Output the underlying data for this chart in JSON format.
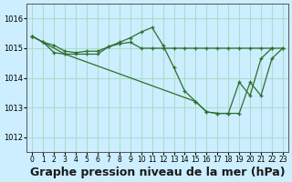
{
  "background_color": "#cceeff",
  "grid_color": "#aaddcc",
  "line_color": "#2d6e2d",
  "marker_color": "#2d6e2d",
  "xlabel": "Graphe pression niveau de la mer (hPa)",
  "xlabel_fontsize": 9,
  "ylim": [
    1011.5,
    1016.5
  ],
  "xlim": [
    -0.5,
    23.5
  ],
  "yticks": [
    1012,
    1013,
    1014,
    1015,
    1016
  ],
  "xticks": [
    0,
    1,
    2,
    3,
    4,
    5,
    6,
    7,
    8,
    9,
    10,
    11,
    12,
    13,
    14,
    15,
    16,
    17,
    18,
    19,
    20,
    21,
    22,
    23
  ],
  "series": [
    {
      "x": [
        0,
        1,
        2,
        3,
        4,
        5,
        6,
        7,
        8,
        9,
        10,
        11,
        12,
        13,
        14,
        15,
        16,
        17,
        18,
        19,
        20,
        21,
        22,
        23
      ],
      "y": [
        1015.4,
        1015.2,
        1015.1,
        1014.9,
        1014.85,
        1014.9,
        1014.9,
        1015.05,
        1015.15,
        1015.2,
        1015.0,
        1015.0,
        1015.0,
        1015.0,
        1015.0,
        1015.0,
        1015.0,
        1015.0,
        1015.0,
        1015.0,
        1015.0,
        1015.0,
        1015.0,
        1015.0
      ]
    },
    {
      "x": [
        0,
        1,
        2,
        3,
        4,
        5,
        6,
        7,
        8,
        9,
        10,
        11,
        12,
        13,
        14,
        15,
        16,
        17,
        18,
        19,
        20,
        21,
        22
      ],
      "y": [
        1015.4,
        1015.2,
        1014.85,
        1014.8,
        1014.8,
        1014.8,
        1014.8,
        1015.05,
        1015.2,
        1015.35,
        1015.55,
        1015.7,
        1015.1,
        1014.35,
        1013.55,
        1013.2,
        1012.85,
        1012.8,
        1012.8,
        1013.85,
        1013.4,
        1014.65,
        1015.0
      ]
    },
    {
      "x": [
        0,
        3,
        15,
        16,
        17,
        18,
        19,
        20,
        21,
        22,
        23
      ],
      "y": [
        1015.4,
        1014.8,
        1013.2,
        1012.85,
        1012.8,
        1012.8,
        1012.8,
        1013.85,
        1013.4,
        1014.65,
        1015.0
      ]
    }
  ]
}
